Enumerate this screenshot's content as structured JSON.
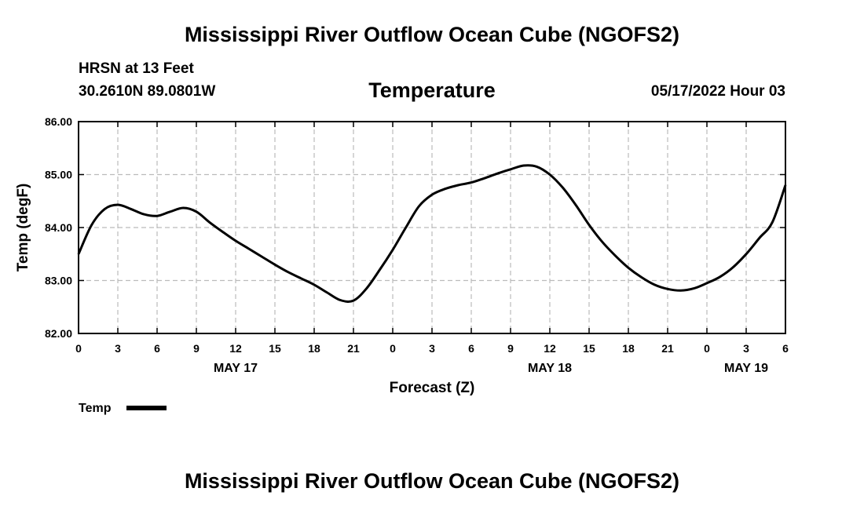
{
  "header": {
    "title": "Mississippi River Outflow Ocean Cube (NGOFS2)",
    "station": "HRSN at 13 Feet",
    "coords": "30.2610N  89.0801W",
    "subtitle": "Temperature",
    "timestamp": "05/17/2022 Hour 03"
  },
  "footer": {
    "title": "Mississippi River Outflow Ocean Cube (NGOFS2)"
  },
  "colors": {
    "line": "#000000",
    "grid": "#bbbbbb",
    "background": "#ffffff"
  },
  "chart_data": {
    "type": "line",
    "title": "Temperature",
    "xlabel": "Forecast (Z)",
    "ylabel": "Temp (degF)",
    "xlim": [
      0,
      54
    ],
    "ylim": [
      82.0,
      86.0
    ],
    "grid": true,
    "legend": {
      "position": "bottom-left",
      "entries": [
        "Temp"
      ]
    },
    "y_ticks": [
      82.0,
      83.0,
      84.0,
      85.0,
      86.0
    ],
    "y_tick_labels": [
      "82.00",
      "83.00",
      "84.00",
      "85.00",
      "86.00"
    ],
    "x_ticks": [
      0,
      3,
      6,
      9,
      12,
      15,
      18,
      21,
      24,
      27,
      30,
      33,
      36,
      39,
      42,
      45,
      48,
      51,
      54
    ],
    "x_tick_labels": [
      "0",
      "3",
      "6",
      "9",
      "12",
      "15",
      "18",
      "21",
      "0",
      "3",
      "6",
      "9",
      "12",
      "15",
      "18",
      "21",
      "0",
      "3",
      "6"
    ],
    "date_labels": [
      {
        "x": 12,
        "label": "MAY 17"
      },
      {
        "x": 36,
        "label": "MAY 18"
      },
      {
        "x": 51,
        "label": "MAY 19"
      }
    ],
    "series": [
      {
        "name": "Temp",
        "x": [
          0,
          1,
          2,
          3,
          4,
          5,
          6,
          7,
          8,
          9,
          10,
          11,
          12,
          13,
          14,
          15,
          16,
          17,
          18,
          19,
          20,
          21,
          22,
          23,
          24,
          25,
          26,
          27,
          28,
          29,
          30,
          31,
          32,
          33,
          34,
          35,
          36,
          37,
          38,
          39,
          40,
          41,
          42,
          43,
          44,
          45,
          46,
          47,
          48,
          49,
          50,
          51,
          52,
          53,
          54
        ],
        "values": [
          83.5,
          84.05,
          84.35,
          84.43,
          84.35,
          84.25,
          84.22,
          84.3,
          84.37,
          84.3,
          84.1,
          83.92,
          83.75,
          83.6,
          83.45,
          83.3,
          83.16,
          83.04,
          82.92,
          82.77,
          82.63,
          82.62,
          82.85,
          83.2,
          83.58,
          84.0,
          84.4,
          84.62,
          84.73,
          84.8,
          84.85,
          84.93,
          85.02,
          85.1,
          85.17,
          85.15,
          85.0,
          84.75,
          84.42,
          84.05,
          83.73,
          83.47,
          83.24,
          83.06,
          82.92,
          82.84,
          82.81,
          82.85,
          82.95,
          83.07,
          83.25,
          83.5,
          83.8,
          84.1,
          84.8
        ]
      }
    ]
  }
}
